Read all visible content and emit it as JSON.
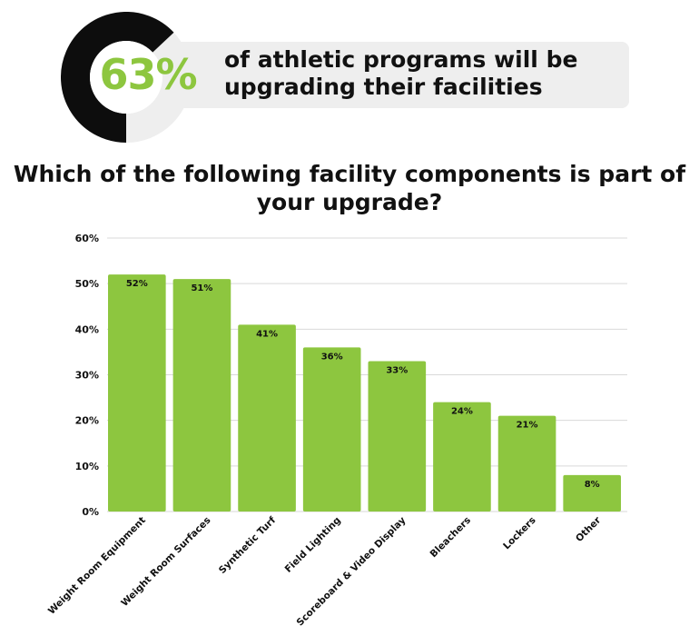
{
  "headline": {
    "percent": "63%",
    "text": "of athletic programs will be upgrading their facilities",
    "donut_value": 0.63
  },
  "colors": {
    "accent": "#8dc63f",
    "donut_dark": "#0d0d0d",
    "donut_light": "#eeeeee",
    "pill_bg": "#eeeeee",
    "gridline": "#d9d9d9",
    "text": "#111111"
  },
  "chart_data": {
    "type": "bar",
    "title": "Which of the following facility components is part of your upgrade?",
    "xlabel": "",
    "ylabel": "",
    "ylim": [
      0,
      60
    ],
    "yticks": [
      0,
      10,
      20,
      30,
      40,
      50,
      60
    ],
    "ytick_labels": [
      "0%",
      "10%",
      "20%",
      "30%",
      "40%",
      "50%",
      "60%"
    ],
    "grid": true,
    "categories": [
      "Weight Room Equipment",
      "Weight Room Surfaces",
      "Synthetic Turf",
      "Field Lighting",
      "Scoreboard & Video Display",
      "Bleachers",
      "Lockers",
      "Other"
    ],
    "values": [
      52,
      51,
      41,
      36,
      33,
      24,
      21,
      8
    ],
    "value_labels": [
      "52%",
      "51%",
      "41%",
      "36%",
      "33%",
      "24%",
      "21%",
      "8%"
    ]
  }
}
